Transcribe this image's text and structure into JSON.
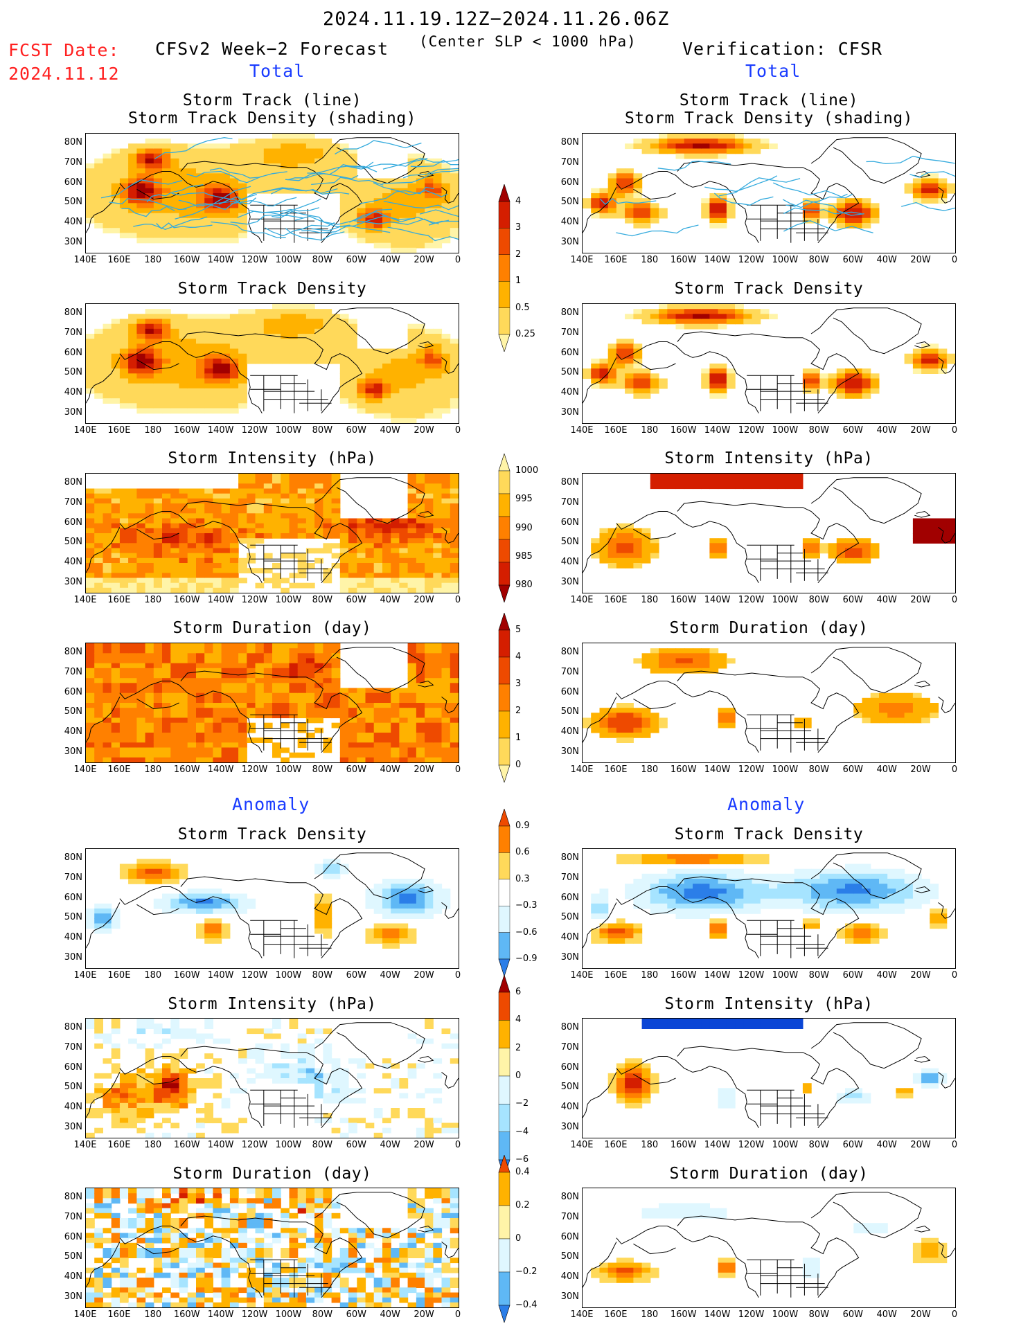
{
  "header": {
    "date_range": "2024.11.19.12Z−2024.11.26.06Z",
    "criterion": "(Center SLP < 1000 hPa)",
    "fcst_date_label": "FCST Date:",
    "fcst_date_value": "2024.11.12",
    "forecast_label": "CFSv2 Week−2 Forecast",
    "verification_label": "Verification: CFSR",
    "total_left": "Total",
    "total_right": "Total",
    "anomaly_left": "Anomaly",
    "anomaly_right": "Anomaly"
  },
  "panels": {
    "p1_line1": "Storm Track (line)",
    "p1_line2": "Storm Track Density (shading)",
    "density": "Storm Track Density",
    "intensity": "Storm Intensity (hPa)",
    "duration": "Storm Duration (day)"
  },
  "axes": {
    "lat_labels": [
      "80N",
      "70N",
      "60N",
      "50N",
      "40N",
      "30N"
    ],
    "lon_labels": [
      "140E",
      "160E",
      "180",
      "160W",
      "140W",
      "120W",
      "100W",
      "80W",
      "60W",
      "40W",
      "20W",
      "0"
    ]
  },
  "colorbars": {
    "density_total": [
      "4",
      "3",
      "2",
      "1",
      "0.5",
      "0.25"
    ],
    "intensity_total": [
      "1000",
      "995",
      "990",
      "985",
      "980"
    ],
    "duration_total": [
      "5",
      "4",
      "3",
      "2",
      "1",
      "0"
    ],
    "density_anom": [
      "0.9",
      "0.6",
      "0.3",
      "−0.3",
      "−0.6",
      "−0.9"
    ],
    "intensity_anom": [
      "6",
      "4",
      "2",
      "0",
      "−2",
      "−4",
      "−6"
    ],
    "duration_anom": [
      "0.4",
      "0.2",
      "0",
      "−0.2",
      "−0.4"
    ]
  },
  "colors": {
    "warm": [
      "#fff4a8",
      "#ffd95a",
      "#ffb200",
      "#ff8000",
      "#ee4a00",
      "#d41e00",
      "#a10000"
    ],
    "cool": [
      "#dff7ff",
      "#a6e4ff",
      "#5fb8f5",
      "#2b7ee8",
      "#0b46d6"
    ],
    "track_line": "#33aadd"
  }
}
